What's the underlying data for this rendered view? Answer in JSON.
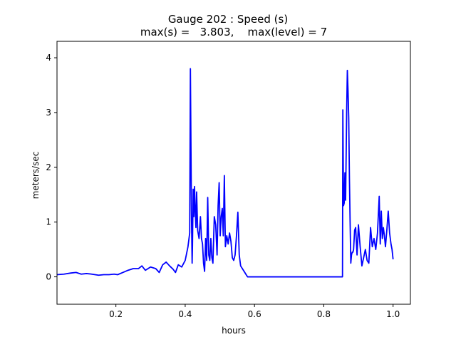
{
  "chart_data": {
    "type": "line",
    "title": "Gauge 202 : Speed (s)",
    "subtitle": "max(s) =   3.803,    max(level) = 7",
    "xlabel": "hours",
    "ylabel": "meters/sec",
    "xlim": [
      0.03,
      1.05
    ],
    "ylim": [
      -0.5,
      4.3
    ],
    "xticks": [
      "0.2",
      "0.4",
      "0.6",
      "0.8",
      "1.0"
    ],
    "yticks": [
      "0",
      "1",
      "2",
      "3",
      "4"
    ],
    "grid": false,
    "line_color": "#0000ff",
    "series": [
      {
        "x": [
          0.03,
          0.05,
          0.07,
          0.085,
          0.1,
          0.115,
          0.13,
          0.15,
          0.165,
          0.18,
          0.195,
          0.205,
          0.22,
          0.235,
          0.25,
          0.265,
          0.275,
          0.285,
          0.3,
          0.315,
          0.325,
          0.335,
          0.345,
          0.355,
          0.365,
          0.372,
          0.38,
          0.39,
          0.4,
          0.408,
          0.413,
          0.415,
          0.418,
          0.42,
          0.421,
          0.423,
          0.425,
          0.427,
          0.429,
          0.431,
          0.433,
          0.436,
          0.44,
          0.444,
          0.447,
          0.45,
          0.453,
          0.456,
          0.459,
          0.462,
          0.465,
          0.468,
          0.471,
          0.474,
          0.477,
          0.48,
          0.484,
          0.488,
          0.492,
          0.495,
          0.498,
          0.501,
          0.504,
          0.507,
          0.51,
          0.513,
          0.516,
          0.52,
          0.524,
          0.528,
          0.532,
          0.536,
          0.54,
          0.544,
          0.548,
          0.552,
          0.556,
          0.56,
          0.565,
          0.57,
          0.575,
          0.58,
          0.6,
          0.7,
          0.8,
          0.854,
          0.855,
          0.857,
          0.859,
          0.861,
          0.863,
          0.866,
          0.868,
          0.87,
          0.872,
          0.874,
          0.876,
          0.878,
          0.88,
          0.882,
          0.884,
          0.886,
          0.889,
          0.892,
          0.896,
          0.9,
          0.905,
          0.91,
          0.915,
          0.92,
          0.925,
          0.93,
          0.935,
          0.94,
          0.945,
          0.95,
          0.955,
          0.96,
          0.963,
          0.966,
          0.969,
          0.972,
          0.975,
          0.978,
          0.982,
          0.986,
          0.99,
          0.994,
          0.997,
          1.0
        ],
        "values": [
          0.04,
          0.05,
          0.07,
          0.08,
          0.05,
          0.06,
          0.05,
          0.03,
          0.04,
          0.04,
          0.05,
          0.04,
          0.08,
          0.12,
          0.15,
          0.15,
          0.2,
          0.12,
          0.18,
          0.15,
          0.08,
          0.22,
          0.27,
          0.2,
          0.14,
          0.08,
          0.22,
          0.18,
          0.3,
          0.55,
          0.8,
          3.8,
          1.2,
          0.25,
          0.55,
          1.6,
          1.1,
          1.65,
          1.2,
          0.9,
          1.55,
          0.85,
          0.7,
          1.1,
          0.7,
          0.6,
          0.25,
          0.1,
          0.7,
          0.3,
          1.45,
          0.4,
          0.3,
          0.7,
          0.35,
          0.25,
          1.1,
          0.95,
          0.4,
          1.3,
          1.72,
          0.75,
          1.1,
          1.25,
          0.75,
          1.85,
          0.55,
          0.75,
          0.6,
          0.8,
          0.65,
          0.35,
          0.3,
          0.4,
          0.75,
          1.18,
          0.4,
          0.2,
          0.15,
          0.1,
          0.05,
          0.0,
          0.0,
          0.0,
          0.0,
          0.0,
          3.05,
          1.3,
          1.35,
          1.9,
          1.4,
          3.0,
          3.77,
          3.4,
          2.9,
          1.8,
          1.0,
          0.25,
          0.4,
          0.45,
          0.45,
          0.5,
          0.85,
          0.9,
          0.4,
          0.95,
          0.55,
          0.2,
          0.35,
          0.5,
          0.3,
          0.25,
          0.9,
          0.55,
          0.7,
          0.5,
          0.8,
          1.47,
          0.6,
          1.2,
          0.7,
          0.9,
          0.75,
          0.55,
          0.85,
          1.2,
          0.8,
          0.6,
          0.5,
          0.32
        ]
      }
    ]
  }
}
